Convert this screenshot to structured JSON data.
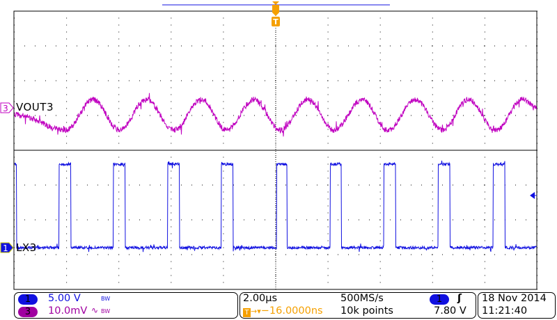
{
  "colors": {
    "ch1": "#1010e0",
    "ch3": "#c000c0",
    "trigger": "#f5a000",
    "grid": "#000000"
  },
  "channels": [
    {
      "number": "1",
      "label": "LX3",
      "scale": "5.00 V",
      "bw_mark": "BW",
      "color": "#1010e0"
    },
    {
      "number": "3",
      "label": "VOUT3",
      "scale": "10.0mV",
      "coupling_icon": "ac-coupling-icon",
      "ac_symbol": "∿",
      "bw_mark": "BW",
      "color": "#c000c0"
    }
  ],
  "horizontal": {
    "scale": "2.00µs",
    "sample_rate": "500MS/s",
    "trigger_marker": "T",
    "delay": "−16.0000ns",
    "record_length": "10k points"
  },
  "trigger": {
    "source": "1",
    "slope_icon": "rising-edge-icon",
    "slope_symbol": "ʃ",
    "level": "7.80 V"
  },
  "datetime": {
    "date": "18 Nov 2014",
    "time": "11:21:40"
  },
  "chart_data": {
    "type": "line",
    "title": "",
    "grid": true,
    "xlim_us": [
      -10,
      10
    ],
    "x_divisions": 10,
    "y_divisions": 8,
    "series": [
      {
        "name": "LX3",
        "channel": "1",
        "units": "V",
        "volts_per_div": 5.0,
        "low_level": 0,
        "high_level": 12,
        "pulses_us": [
          [
            -10.03,
            -9.92
          ],
          [
            -8.29,
            -7.84
          ],
          [
            -6.21,
            -5.76
          ],
          [
            -4.13,
            -3.68
          ],
          [
            -2.08,
            -1.63
          ],
          [
            0.03,
            0.43
          ],
          [
            2.08,
            2.51
          ],
          [
            4.13,
            4.59
          ],
          [
            6.21,
            6.67
          ],
          [
            8.32,
            8.77
          ]
        ]
      },
      {
        "name": "VOUT3",
        "channel": "3",
        "units": "mV",
        "volts_per_div": 0.01,
        "coupling": "AC",
        "extrema": [
          [
            -10.0,
            -2.0
          ],
          [
            -8.03,
            -6.4
          ],
          [
            -6.99,
            2.4
          ],
          [
            -5.97,
            -6.4
          ],
          [
            -4.96,
            2.4
          ],
          [
            -3.89,
            -6.4
          ],
          [
            -2.83,
            2.4
          ],
          [
            -1.89,
            -6.4
          ],
          [
            -0.83,
            2.4
          ],
          [
            0.19,
            -6.4
          ],
          [
            1.23,
            2.4
          ],
          [
            2.24,
            -6.4
          ],
          [
            3.31,
            2.4
          ],
          [
            4.29,
            -6.4
          ],
          [
            5.33,
            2.4
          ],
          [
            6.37,
            -6.4
          ],
          [
            7.36,
            2.4
          ],
          [
            8.43,
            -6.4
          ],
          [
            9.44,
            2.4
          ],
          [
            10.0,
            0.0
          ]
        ]
      }
    ]
  }
}
